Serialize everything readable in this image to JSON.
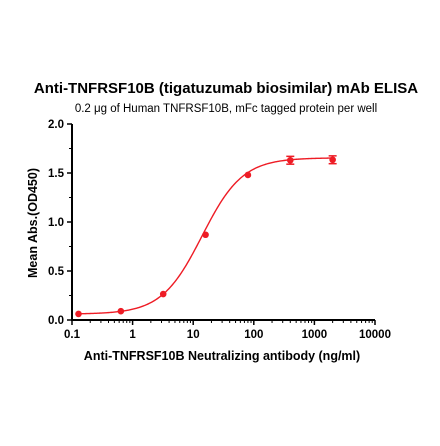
{
  "chart_data": {
    "type": "scatter",
    "title": "Anti-TNFRSF10B (tigatuzumab biosimilar) mAb ELISA",
    "subtitle": "0.2 μg of Human TNFRSF10B, mFc tagged protein per well",
    "xlabel": "Anti-TNFRSF10B Neutralizing antibody (ng/ml)",
    "ylabel": "Mean Abs.(OD450)",
    "x_scale": "log",
    "xlim": [
      0.1,
      10000
    ],
    "ylim": [
      0,
      2.0
    ],
    "x_ticks": [
      0.1,
      1,
      10,
      100,
      1000,
      10000
    ],
    "x_tick_labels": [
      "0.1",
      "1",
      "10",
      "100",
      "1000",
      "10000"
    ],
    "y_ticks": [
      0.0,
      0.5,
      1.0,
      1.5,
      2.0
    ],
    "y_tick_labels": [
      "0.0",
      "0.5",
      "1.0",
      "1.5",
      "2.0"
    ],
    "grid": false,
    "series": [
      {
        "color": "#ee1c25",
        "points": [
          {
            "x": 0.128,
            "y": 0.062
          },
          {
            "x": 0.64,
            "y": 0.09
          },
          {
            "x": 3.2,
            "y": 0.265
          },
          {
            "x": 16,
            "y": 0.87
          },
          {
            "x": 80,
            "y": 1.48
          },
          {
            "x": 400,
            "y": 1.63,
            "err": 0.04
          },
          {
            "x": 2000,
            "y": 1.635,
            "err": 0.04
          }
        ],
        "fit": {
          "model": "4PL",
          "bottom": 0.06,
          "top": 1.655,
          "ec50": 14,
          "hill": 1.3
        }
      }
    ]
  }
}
